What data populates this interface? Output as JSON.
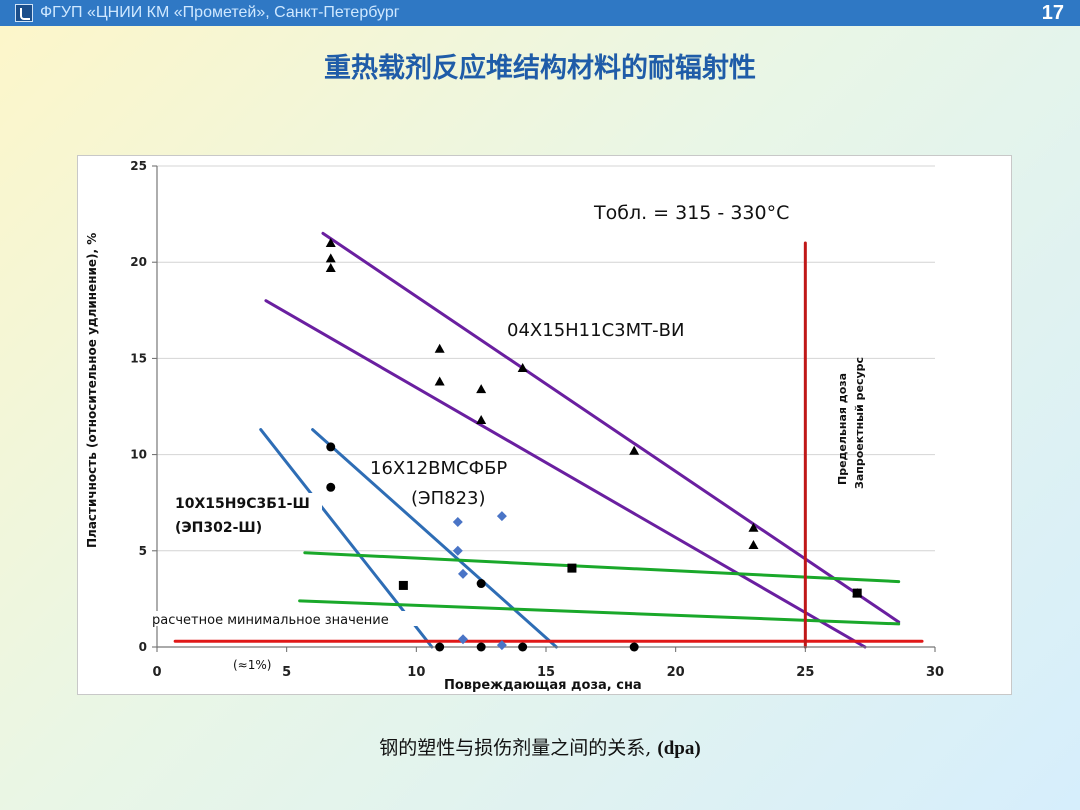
{
  "header": {
    "organization": "ФГУП «ЦНИИ КМ «Прометей», Санкт-Петербург",
    "page_number": "17",
    "bar_color": "#2f78c4"
  },
  "slide": {
    "title": "重热载剂反应堆结构材料的耐辐射性",
    "caption_main": "钢的塑性与损伤剂量之间的关系,",
    "caption_unit": "(dpa)"
  },
  "chart_data": {
    "type": "scatter",
    "title": "Тобл. = 315 - 330°C",
    "xlabel": "Повреждающая доза, сна",
    "ylabel": "Пластичность (относительное удлинение), %",
    "xlim": [
      0,
      30
    ],
    "ylim": [
      0,
      25
    ],
    "xticks": [
      "0",
      "5",
      "10",
      "15",
      "20",
      "25",
      "30"
    ],
    "yticks": [
      "0",
      "5",
      "10",
      "15",
      "20",
      "25"
    ],
    "grid": true,
    "annotations": {
      "tick_note": "(≈1%)",
      "min_value": "расчетное минимальное значение",
      "limit_dose": "Предельная доза",
      "limit_resource": "Запроектный ресурс",
      "steel_a": "04Х15Н11С3МТ-ВИ",
      "steel_b_line1": "16Х12ВМСФБР",
      "steel_b_line2": "(ЭП823)",
      "steel_c_line1": "10Х15Н9С3Б1-Ш",
      "steel_c_line2": "(ЭП302-Ш)"
    },
    "series": [
      {
        "name": "04Х15Н11С3МТ-ВИ",
        "marker": "triangle",
        "color": "#000000",
        "points": [
          [
            6.7,
            21.0
          ],
          [
            6.7,
            20.2
          ],
          [
            6.7,
            19.7
          ],
          [
            10.9,
            15.5
          ],
          [
            10.9,
            13.8
          ],
          [
            12.5,
            13.4
          ],
          [
            12.5,
            11.8
          ],
          [
            14.1,
            14.5
          ],
          [
            18.4,
            10.2
          ],
          [
            23.0,
            6.2
          ],
          [
            23.0,
            5.3
          ],
          [
            27.0,
            2.8
          ]
        ]
      },
      {
        "name": "16Х12ВМСФБР (ЭП823)",
        "marker": "diamond",
        "color": "#4a74c6",
        "points": [
          [
            11.6,
            6.5
          ],
          [
            13.3,
            6.8
          ],
          [
            11.6,
            5.0
          ],
          [
            11.8,
            3.8
          ],
          [
            11.8,
            0.4
          ],
          [
            13.3,
            0.1
          ]
        ]
      },
      {
        "name": "10Х15Н9С3Б1-Ш (ЭП302-Ш)",
        "marker": "circle",
        "color": "#000000",
        "points": [
          [
            6.7,
            10.4
          ],
          [
            6.7,
            8.3
          ],
          [
            12.5,
            3.3
          ],
          [
            10.9,
            0.0
          ],
          [
            12.5,
            0.0
          ],
          [
            14.1,
            0.0
          ],
          [
            18.4,
            0.0
          ]
        ]
      },
      {
        "name": "square",
        "marker": "square",
        "color": "#000000",
        "points": [
          [
            9.5,
            3.2
          ],
          [
            16.0,
            4.1
          ],
          [
            27.0,
            2.8
          ]
        ]
      }
    ],
    "lines": [
      {
        "name": "04Х15Н11С3МТ-ВИ upper",
        "color": "#6a1fa0",
        "from": [
          6.4,
          21.5
        ],
        "to": [
          28.6,
          1.3
        ]
      },
      {
        "name": "04Х15Н11С3МТ-ВИ lower",
        "color": "#6a1fa0",
        "from": [
          4.2,
          18.0
        ],
        "to": [
          27.3,
          0.0
        ]
      },
      {
        "name": "ЭП823 upper",
        "color": "#2e6db5",
        "from": [
          6.0,
          11.3
        ],
        "to": [
          15.4,
          0.0
        ]
      },
      {
        "name": "ЭП302 lower",
        "color": "#2e6db5",
        "from": [
          4.0,
          11.3
        ],
        "to": [
          10.6,
          0.0
        ]
      },
      {
        "name": "green upper",
        "color": "#1aa82a",
        "from": [
          5.7,
          4.9
        ],
        "to": [
          28.6,
          3.4
        ]
      },
      {
        "name": "green lower",
        "color": "#1aa82a",
        "from": [
          5.5,
          2.4
        ],
        "to": [
          28.6,
          1.2
        ]
      },
      {
        "name": "min value",
        "color": "#e01818",
        "from": [
          0.7,
          0.3
        ],
        "to": [
          29.5,
          0.3
        ]
      },
      {
        "name": "limit dose",
        "color": "#c01818",
        "from": [
          25.0,
          0.0
        ],
        "to": [
          25.0,
          21.0
        ]
      }
    ]
  }
}
